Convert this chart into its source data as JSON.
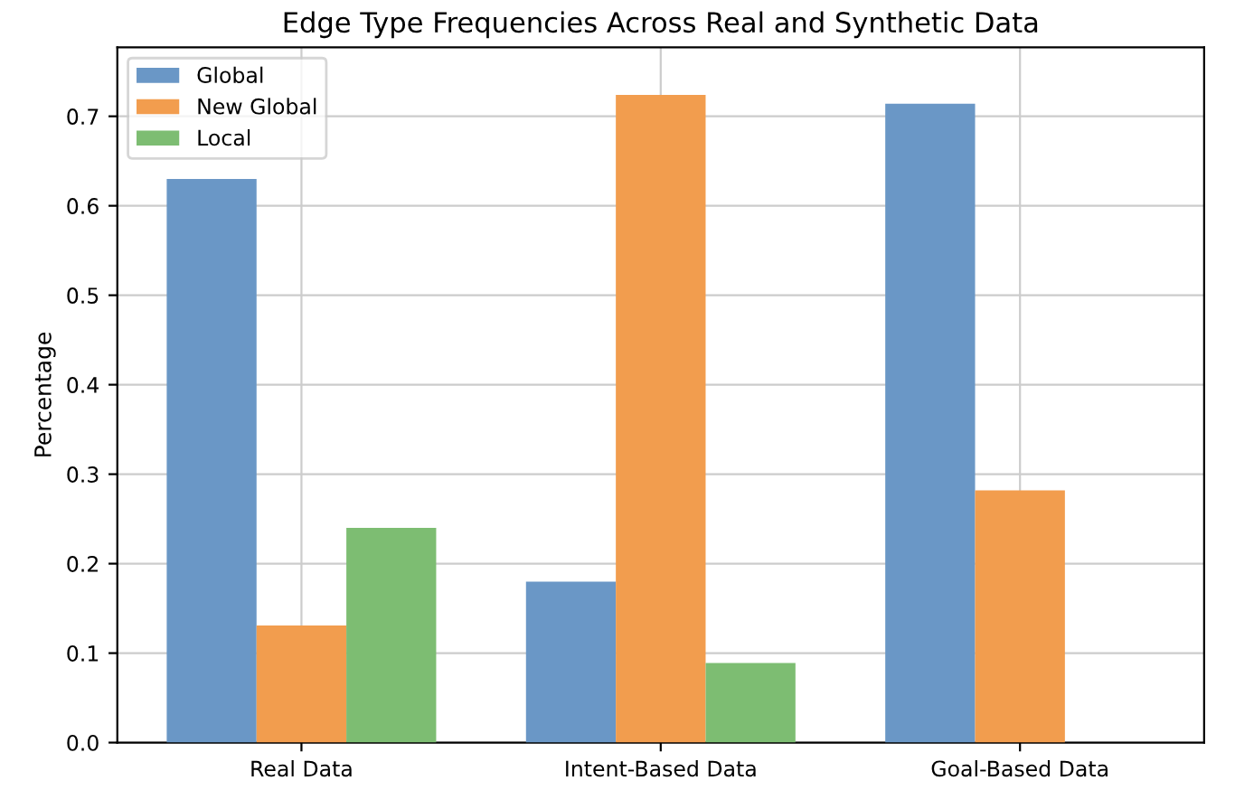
{
  "chart_data": {
    "type": "bar",
    "title": "Edge Type Frequencies Across Real and Synthetic Data",
    "ylabel": "Percentage",
    "categories": [
      "Real Data",
      "Intent-Based Data",
      "Goal-Based Data"
    ],
    "series": [
      {
        "name": "Global",
        "color": "#6a97c6",
        "values": [
          0.63,
          0.18,
          0.714
        ]
      },
      {
        "name": "New Global",
        "color": "#f29d4e",
        "values": [
          0.131,
          0.724,
          0.282
        ]
      },
      {
        "name": "Local",
        "color": "#7dbd72",
        "values": [
          0.24,
          0.089,
          0
        ]
      }
    ],
    "ylim": [
      0,
      0.777
    ],
    "yticks": [
      {
        "value": 0,
        "label": "0.0"
      },
      0.1,
      0.2,
      0.3,
      0.4,
      0.5,
      0.6,
      0.7
    ],
    "grid": true,
    "legend": "top left"
  }
}
